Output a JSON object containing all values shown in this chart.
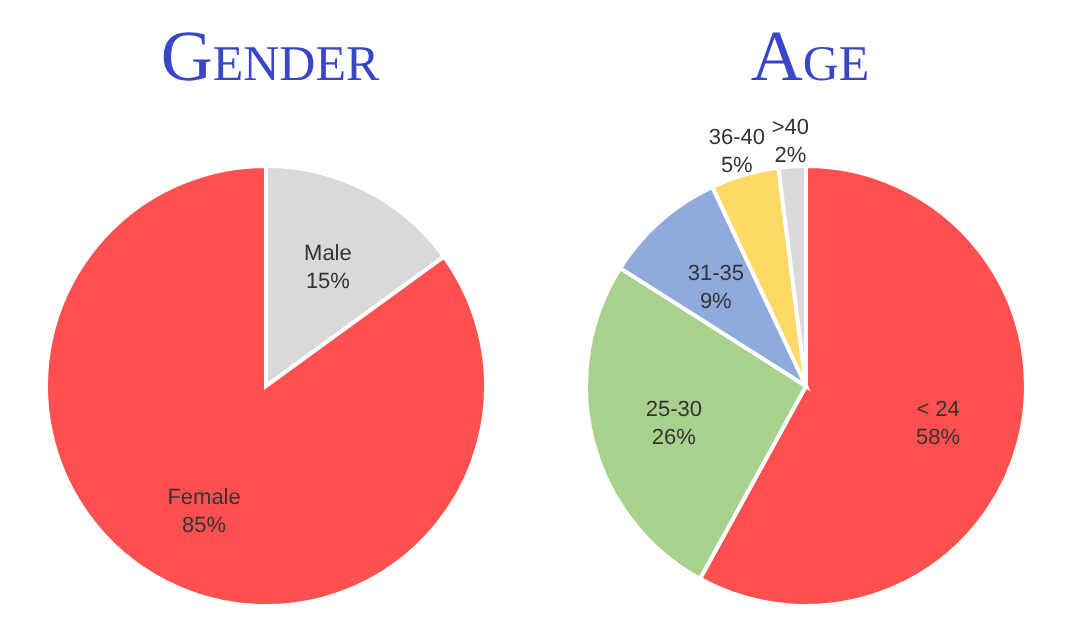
{
  "chart_data": [
    {
      "type": "pie",
      "title": "Gender",
      "categories": [
        "Male",
        "Female"
      ],
      "values": [
        15,
        85
      ],
      "colors": [
        "#d9d9d9",
        "#ff5050"
      ],
      "value_labels": [
        "15%",
        "85%"
      ],
      "legend": false
    },
    {
      "type": "pie",
      "title": "Age",
      "categories": [
        "< 24",
        "25-30",
        "31-35",
        "36-40",
        ">40"
      ],
      "values": [
        58,
        26,
        9,
        5,
        2
      ],
      "colors": [
        "#ff5050",
        "#a9d18e",
        "#8faadc",
        "#ffd966",
        "#d9d9d9"
      ],
      "value_labels": [
        "58%",
        "26%",
        "9%",
        "5%",
        "2%"
      ],
      "legend": false
    }
  ]
}
